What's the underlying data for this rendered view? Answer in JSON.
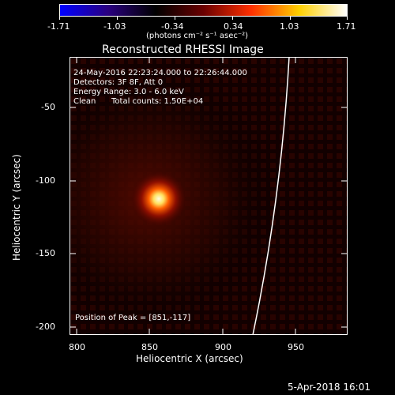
{
  "colorbar": {
    "tick_labels": [
      "-1.71",
      "-1.03",
      "-0.34",
      "0.34",
      "1.03",
      "1.71"
    ],
    "units_label": "(photons cm⁻² s⁻¹ asec⁻²)",
    "colors": [
      "#0000ff",
      "#2a0080",
      "#000000",
      "#6a0000",
      "#ff3000",
      "#ffd000",
      "#ffffff"
    ]
  },
  "image": {
    "title": "Reconstructed RHESSI Image",
    "xlabel": "Heliocentric X (arcsec)",
    "ylabel": "Heliocentric Y (arcsec)",
    "x_ticks": [
      "800",
      "850",
      "900",
      "950"
    ],
    "y_ticks": [
      "-50",
      "-100",
      "-150",
      "-200"
    ],
    "xlim": [
      790,
      980
    ],
    "ylim": [
      -210,
      -20
    ],
    "annotations": {
      "time_range": "24-May-2016 22:23:24.000 to 22:26:44.000",
      "detectors": "Detectors: 3F 8F, Att 0",
      "energy": "Energy Range: 3.0 - 6.0 keV",
      "method": "Clean",
      "counts": "Total counts: 1.50E+04",
      "peak": "Position of Peak = [851,-117]"
    },
    "peak": [
      851,
      -117
    ]
  },
  "footer": {
    "timestamp": "5-Apr-2018 16:01"
  }
}
